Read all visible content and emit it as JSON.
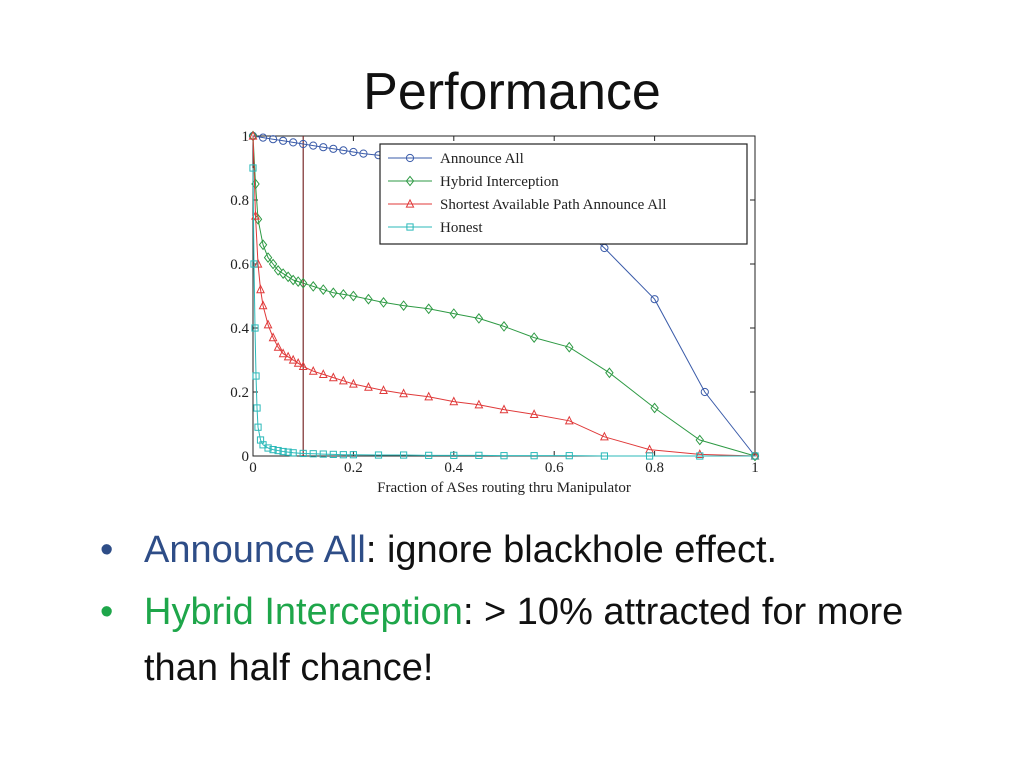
{
  "slide": {
    "title": "Performance",
    "bullets": [
      {
        "term": "Announce All",
        "rest": ": ignore blackhole effect.",
        "term_color": "#2e4d87"
      },
      {
        "term": "Hybrid Interception",
        "rest": ": > 10% attracted for more than half chance!",
        "term_color": "#1ea64a"
      }
    ],
    "bullet_symbol": "•"
  },
  "chart_data": {
    "type": "line",
    "title": "",
    "xlabel": "Fraction of ASes routing thru Manipulator",
    "ylabel": "",
    "xlim": [
      0,
      1
    ],
    "ylim": [
      0,
      1
    ],
    "x_ticks": [
      "0",
      "0.2",
      "0.4",
      "0.6",
      "0.8",
      "1"
    ],
    "y_ticks": [
      "0",
      "0.2",
      "0.4",
      "0.6",
      "0.8",
      "1"
    ],
    "vertical_marker_x": 0.1,
    "legend_position": "top-right",
    "series": [
      {
        "name": "Announce All",
        "color": "#3a5ba9",
        "marker": "circle",
        "x": [
          0,
          0.02,
          0.04,
          0.06,
          0.08,
          0.1,
          0.12,
          0.14,
          0.16,
          0.18,
          0.2,
          0.22,
          0.25,
          0.3,
          0.35,
          0.4,
          0.5,
          0.6,
          0.7,
          0.8,
          0.9,
          1.0
        ],
        "y": [
          1.0,
          0.995,
          0.99,
          0.985,
          0.98,
          0.975,
          0.97,
          0.965,
          0.96,
          0.955,
          0.95,
          0.945,
          0.94,
          0.93,
          0.92,
          0.905,
          0.86,
          0.79,
          0.65,
          0.49,
          0.2,
          0.0
        ]
      },
      {
        "name": "Hybrid Interception",
        "color": "#2e9a44",
        "marker": "diamond",
        "x": [
          0,
          0.005,
          0.01,
          0.02,
          0.03,
          0.04,
          0.05,
          0.06,
          0.07,
          0.08,
          0.09,
          0.1,
          0.12,
          0.14,
          0.16,
          0.18,
          0.2,
          0.23,
          0.26,
          0.3,
          0.35,
          0.4,
          0.45,
          0.5,
          0.56,
          0.63,
          0.71,
          0.8,
          0.89,
          1.0
        ],
        "y": [
          1.0,
          0.85,
          0.74,
          0.66,
          0.62,
          0.6,
          0.58,
          0.57,
          0.56,
          0.55,
          0.545,
          0.54,
          0.53,
          0.52,
          0.51,
          0.505,
          0.5,
          0.49,
          0.48,
          0.47,
          0.46,
          0.445,
          0.43,
          0.405,
          0.37,
          0.34,
          0.26,
          0.15,
          0.05,
          0.0
        ]
      },
      {
        "name": "Shortest Available Path Announce All",
        "color": "#e03a3a",
        "marker": "triangle",
        "x": [
          0,
          0.005,
          0.01,
          0.015,
          0.02,
          0.03,
          0.04,
          0.05,
          0.06,
          0.07,
          0.08,
          0.09,
          0.1,
          0.12,
          0.14,
          0.16,
          0.18,
          0.2,
          0.23,
          0.26,
          0.3,
          0.35,
          0.4,
          0.45,
          0.5,
          0.56,
          0.63,
          0.7,
          0.79,
          0.89,
          1.0
        ],
        "y": [
          1.0,
          0.75,
          0.6,
          0.52,
          0.47,
          0.41,
          0.37,
          0.34,
          0.32,
          0.31,
          0.3,
          0.29,
          0.28,
          0.265,
          0.255,
          0.245,
          0.235,
          0.225,
          0.215,
          0.205,
          0.195,
          0.185,
          0.17,
          0.16,
          0.145,
          0.13,
          0.11,
          0.06,
          0.02,
          0.005,
          0.0
        ]
      },
      {
        "name": "Honest",
        "color": "#2bb9b9",
        "marker": "square",
        "x": [
          0,
          0.002,
          0.004,
          0.006,
          0.008,
          0.01,
          0.015,
          0.02,
          0.03,
          0.04,
          0.05,
          0.06,
          0.07,
          0.08,
          0.1,
          0.12,
          0.14,
          0.16,
          0.18,
          0.2,
          0.25,
          0.3,
          0.35,
          0.4,
          0.45,
          0.5,
          0.56,
          0.63,
          0.7,
          0.79,
          0.89,
          1.0
        ],
        "y": [
          0.9,
          0.6,
          0.4,
          0.25,
          0.15,
          0.09,
          0.05,
          0.035,
          0.025,
          0.02,
          0.017,
          0.014,
          0.012,
          0.01,
          0.008,
          0.007,
          0.006,
          0.005,
          0.004,
          0.004,
          0.003,
          0.003,
          0.002,
          0.002,
          0.002,
          0.001,
          0.001,
          0.001,
          0.0,
          0.0,
          0.0,
          0.0
        ]
      }
    ]
  }
}
